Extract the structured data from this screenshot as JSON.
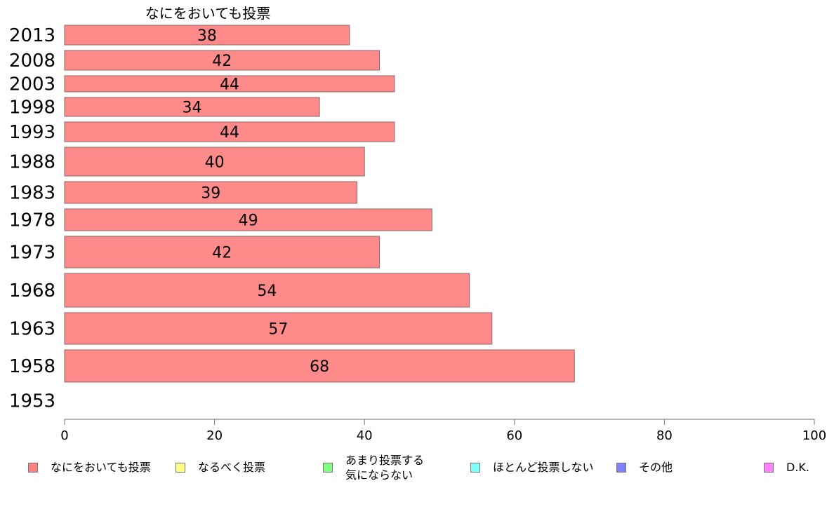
{
  "chart_data": {
    "type": "bar",
    "orientation": "horizontal",
    "title": "なにをおいても投票",
    "categories": [
      "2013",
      "2008",
      "2003",
      "1998",
      "1993",
      "1988",
      "1983",
      "1978",
      "1973",
      "1968",
      "1963",
      "1958",
      "1953"
    ],
    "series": [
      {
        "name": "なにをおいても投票",
        "color": "#ff8a8a",
        "values": [
          38,
          42,
          44,
          34,
          44,
          40,
          39,
          49,
          42,
          54,
          57,
          68,
          null
        ],
        "labels": [
          "38",
          "42",
          "44",
          "34",
          "44",
          "40",
          "39",
          "49",
          "42",
          "54",
          "57",
          "68",
          ""
        ]
      }
    ],
    "xlim": [
      0,
      100
    ],
    "xticks": [
      0,
      20,
      40,
      60,
      80,
      100
    ],
    "grid": false,
    "legend_position": "bottom",
    "legend": [
      {
        "label": "なにをおいても投票",
        "color": "#ff8080"
      },
      {
        "label": "なるべく投票",
        "color": "#ffff80"
      },
      {
        "label": "あまり投票する\n気にならない",
        "color": "#80ff80"
      },
      {
        "label": "ほとんど投票しない",
        "color": "#80ffff"
      },
      {
        "label": "その他",
        "color": "#8080ff"
      },
      {
        "label": "D.K.",
        "color": "#ff80ff"
      }
    ]
  }
}
